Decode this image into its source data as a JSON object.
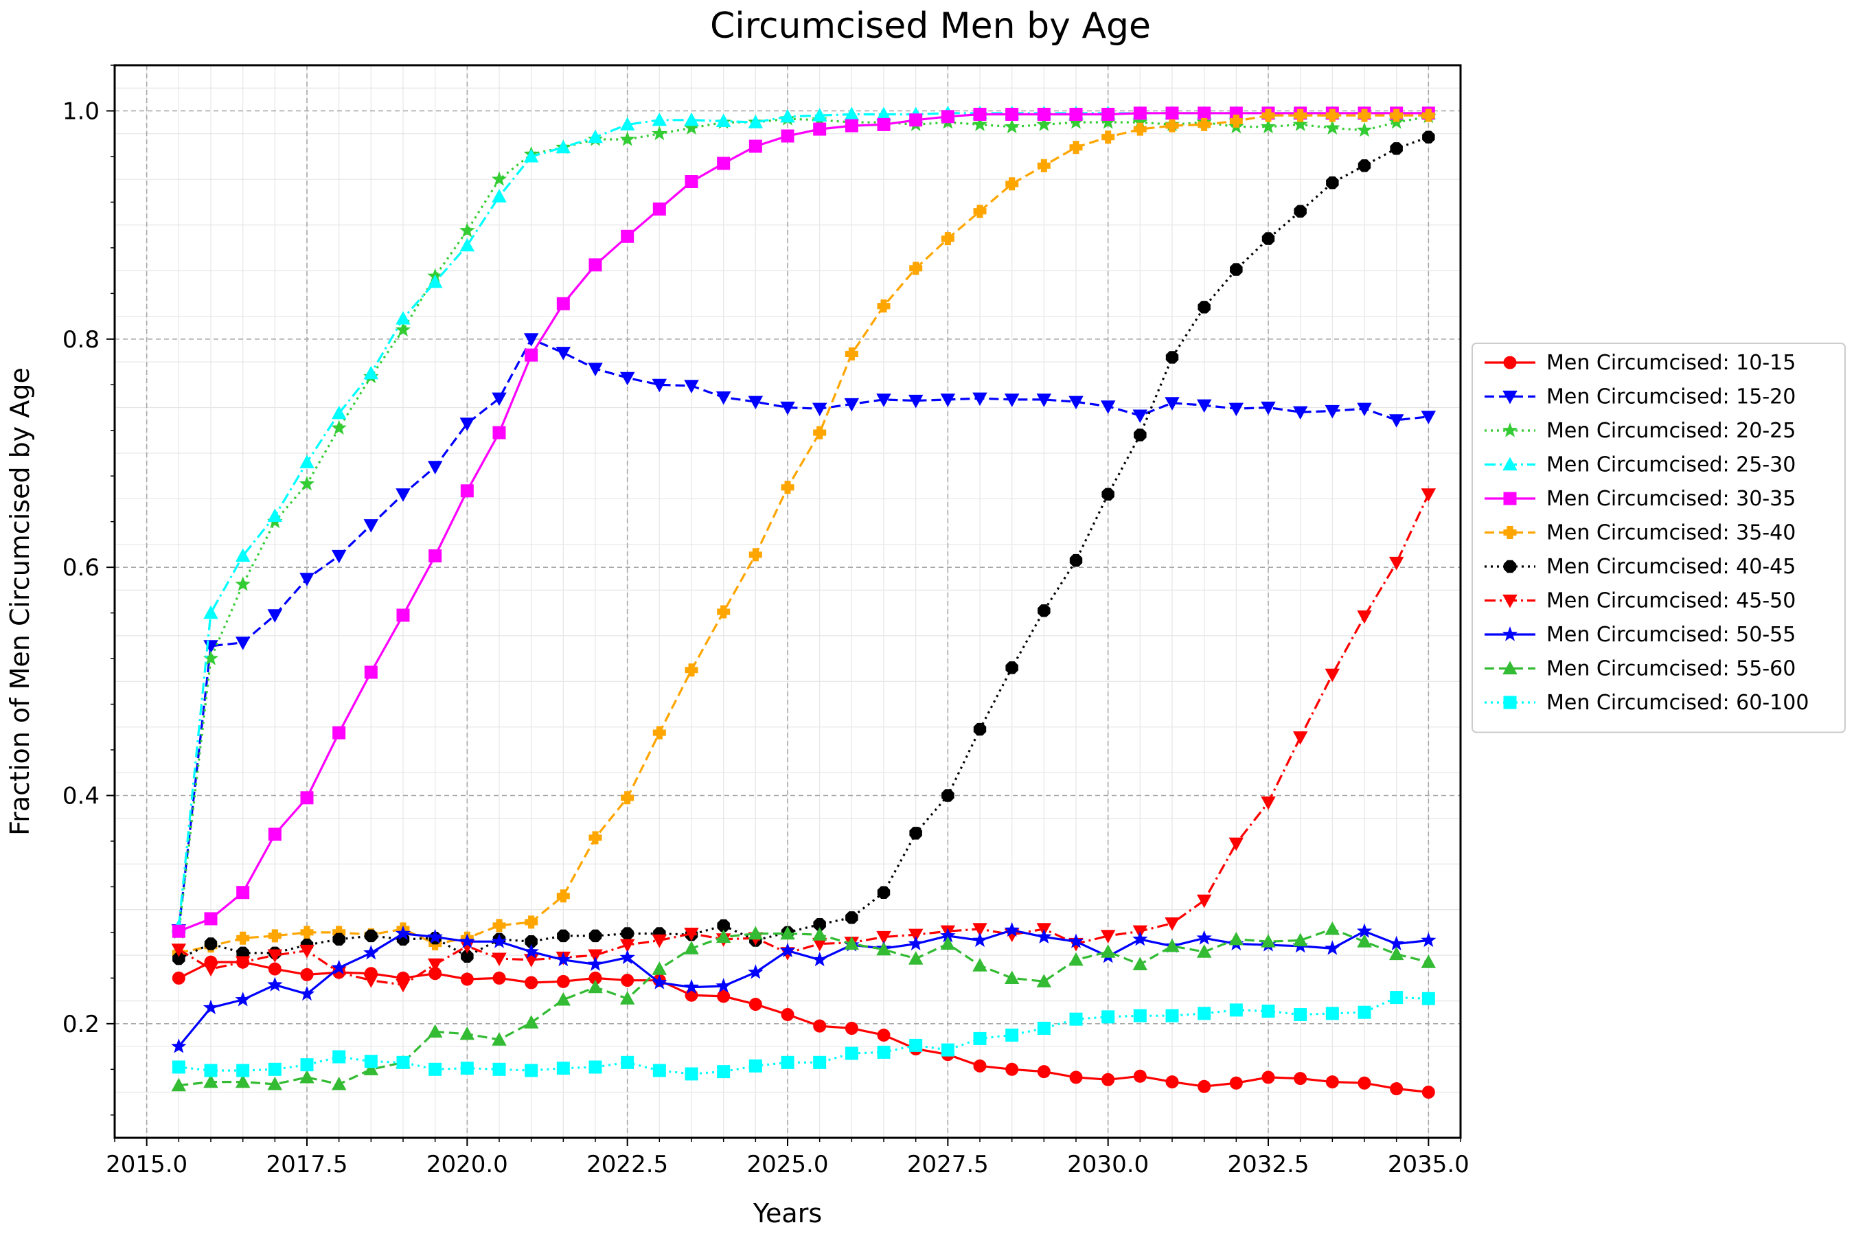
{
  "chart_data": {
    "type": "line",
    "title": "Circumcised Men by Age",
    "xlabel": "Years",
    "ylabel": "Fraction of Men Circumcised by Age",
    "xlim": [
      2014.5,
      2035.5
    ],
    "ylim": [
      0.1,
      1.04
    ],
    "x_ticks": [
      2015.0,
      2017.5,
      2020.0,
      2022.5,
      2025.0,
      2027.5,
      2030.0,
      2032.5,
      2035.0
    ],
    "x_tick_labels": [
      "2015.0",
      "2017.5",
      "2020.0",
      "2022.5",
      "2025.0",
      "2027.5",
      "2030.0",
      "2032.5",
      "2035.0"
    ],
    "y_ticks": [
      0.2,
      0.4,
      0.6,
      0.8,
      1.0
    ],
    "y_tick_labels": [
      "0.2",
      "0.4",
      "0.6",
      "0.8",
      "1.0"
    ],
    "grid": true,
    "legend_position": "outside right",
    "x": [
      2015.5,
      2016.0,
      2016.5,
      2017.0,
      2017.5,
      2018.0,
      2018.5,
      2019.0,
      2019.5,
      2020.0,
      2020.5,
      2021.0,
      2021.5,
      2022.0,
      2022.5,
      2023.0,
      2023.5,
      2024.0,
      2024.5,
      2025.0,
      2025.5,
      2026.0,
      2026.5,
      2027.0,
      2027.5,
      2028.0,
      2028.5,
      2029.0,
      2029.5,
      2030.0,
      2030.5,
      2031.0,
      2031.5,
      2032.0,
      2032.5,
      2033.0,
      2033.5,
      2034.0,
      2034.5,
      2035.0
    ],
    "series": [
      {
        "name": "Men Circumcised: 10-15",
        "color": "#ff0000",
        "marker": "circle",
        "dash": "solid",
        "values": [
          0.24,
          0.254,
          0.254,
          0.248,
          0.243,
          0.245,
          0.244,
          0.24,
          0.244,
          0.239,
          0.24,
          0.236,
          0.237,
          0.24,
          0.238,
          0.238,
          0.225,
          0.224,
          0.217,
          0.208,
          0.198,
          0.196,
          0.19,
          0.178,
          0.173,
          0.163,
          0.16,
          0.158,
          0.153,
          0.151,
          0.154,
          0.149,
          0.145,
          0.148,
          0.153,
          0.152,
          0.149,
          0.148,
          0.143,
          0.14
        ]
      },
      {
        "name": "Men Circumcised: 15-20",
        "color": "#0000ff",
        "marker": "triangle-down",
        "dash": "dashed",
        "values": [
          0.282,
          0.531,
          0.534,
          0.558,
          0.59,
          0.61,
          0.637,
          0.664,
          0.688,
          0.726,
          0.748,
          0.8,
          0.788,
          0.774,
          0.766,
          0.76,
          0.759,
          0.749,
          0.745,
          0.74,
          0.739,
          0.743,
          0.747,
          0.746,
          0.747,
          0.748,
          0.747,
          0.747,
          0.745,
          0.741,
          0.733,
          0.744,
          0.742,
          0.739,
          0.74,
          0.736,
          0.737,
          0.739,
          0.729,
          0.732
        ]
      },
      {
        "name": "Men Circumcised: 20-25",
        "color": "#33cc33",
        "marker": "star",
        "dash": "dotted",
        "values": [
          0.28,
          0.52,
          0.585,
          0.64,
          0.673,
          0.722,
          0.767,
          0.808,
          0.855,
          0.895,
          0.94,
          0.962,
          0.968,
          0.975,
          0.975,
          0.98,
          0.985,
          0.99,
          0.99,
          0.993,
          0.992,
          0.99,
          0.99,
          0.988,
          0.99,
          0.988,
          0.986,
          0.988,
          0.99,
          0.99,
          0.99,
          0.988,
          0.99,
          0.986,
          0.986,
          0.988,
          0.985,
          0.983,
          0.99,
          0.995
        ]
      },
      {
        "name": "Men Circumcised: 25-30",
        "color": "#00ffff",
        "marker": "triangle-up",
        "dash": "dashdot",
        "values": [
          0.285,
          0.56,
          0.61,
          0.645,
          0.692,
          0.735,
          0.77,
          0.818,
          0.85,
          0.882,
          0.925,
          0.96,
          0.968,
          0.977,
          0.988,
          0.992,
          0.992,
          0.991,
          0.99,
          0.995,
          0.996,
          0.997,
          0.997,
          0.997,
          0.998,
          0.998,
          0.998,
          0.998,
          0.998,
          0.998,
          0.998,
          0.998,
          0.998,
          0.998,
          0.998,
          0.998,
          0.998,
          0.998,
          0.998,
          0.998
        ]
      },
      {
        "name": "Men Circumcised: 30-35",
        "color": "#ff00ff",
        "marker": "square",
        "dash": "solid",
        "values": [
          0.281,
          0.292,
          0.315,
          0.366,
          0.398,
          0.455,
          0.508,
          0.558,
          0.61,
          0.667,
          0.718,
          0.786,
          0.831,
          0.865,
          0.89,
          0.914,
          0.938,
          0.954,
          0.969,
          0.978,
          0.984,
          0.987,
          0.988,
          0.992,
          0.995,
          0.997,
          0.997,
          0.997,
          0.997,
          0.997,
          0.998,
          0.998,
          0.998,
          0.998,
          0.998,
          0.998,
          0.998,
          0.998,
          0.998,
          0.998
        ]
      },
      {
        "name": "Men Circumcised: 35-40",
        "color": "#ffa500",
        "marker": "plus",
        "dash": "dashed",
        "values": [
          0.262,
          0.268,
          0.275,
          0.277,
          0.28,
          0.28,
          0.278,
          0.283,
          0.27,
          0.275,
          0.286,
          0.289,
          0.312,
          0.363,
          0.398,
          0.455,
          0.51,
          0.561,
          0.611,
          0.67,
          0.718,
          0.787,
          0.829,
          0.862,
          0.888,
          0.912,
          0.936,
          0.952,
          0.968,
          0.977,
          0.984,
          0.987,
          0.988,
          0.991,
          0.996,
          0.996,
          0.996,
          0.996,
          0.996,
          0.996
        ]
      },
      {
        "name": "Men Circumcised: 40-45",
        "color": "#000000",
        "marker": "octagon",
        "dash": "dotted",
        "values": [
          0.257,
          0.27,
          0.262,
          0.262,
          0.269,
          0.274,
          0.277,
          0.274,
          0.275,
          0.259,
          0.274,
          0.272,
          0.277,
          0.277,
          0.279,
          0.279,
          0.278,
          0.286,
          0.273,
          0.28,
          0.287,
          0.293,
          0.315,
          0.367,
          0.4,
          0.458,
          0.512,
          0.562,
          0.606,
          0.664,
          0.716,
          0.784,
          0.828,
          0.861,
          0.888,
          0.912,
          0.937,
          0.952,
          0.967,
          0.977
        ]
      },
      {
        "name": "Men Circumcised: 45-50",
        "color": "#ff0000",
        "marker": "triangle-down",
        "dash": "dashdot",
        "values": [
          0.265,
          0.248,
          0.254,
          0.26,
          0.264,
          0.245,
          0.238,
          0.234,
          0.252,
          0.268,
          0.257,
          0.256,
          0.258,
          0.26,
          0.269,
          0.273,
          0.279,
          0.274,
          0.275,
          0.262,
          0.27,
          0.271,
          0.276,
          0.278,
          0.281,
          0.283,
          0.278,
          0.283,
          0.27,
          0.277,
          0.281,
          0.288,
          0.308,
          0.358,
          0.394,
          0.451,
          0.506,
          0.557,
          0.604,
          0.664
        ]
      },
      {
        "name": "Men Circumcised: 50-55",
        "color": "#0000ff",
        "marker": "star",
        "dash": "solid",
        "values": [
          0.18,
          0.214,
          0.221,
          0.234,
          0.226,
          0.249,
          0.262,
          0.279,
          0.276,
          0.272,
          0.272,
          0.263,
          0.256,
          0.252,
          0.258,
          0.236,
          0.232,
          0.233,
          0.245,
          0.264,
          0.256,
          0.269,
          0.266,
          0.27,
          0.277,
          0.273,
          0.282,
          0.276,
          0.272,
          0.259,
          0.274,
          0.268,
          0.275,
          0.27,
          0.269,
          0.268,
          0.266,
          0.281,
          0.27,
          0.273
        ]
      },
      {
        "name": "Men Circumcised: 55-60",
        "color": "#33bb33",
        "marker": "triangle-up",
        "dash": "dashed",
        "values": [
          0.146,
          0.149,
          0.149,
          0.147,
          0.153,
          0.147,
          0.16,
          0.166,
          0.193,
          0.191,
          0.186,
          0.201,
          0.221,
          0.232,
          0.222,
          0.248,
          0.266,
          0.276,
          0.279,
          0.279,
          0.278,
          0.27,
          0.265,
          0.257,
          0.27,
          0.251,
          0.24,
          0.237,
          0.256,
          0.263,
          0.252,
          0.268,
          0.263,
          0.274,
          0.272,
          0.273,
          0.283,
          0.272,
          0.261,
          0.254
        ]
      },
      {
        "name": "Men Circumcised: 60-100",
        "color": "#00ffff",
        "marker": "square",
        "dash": "dotted",
        "values": [
          0.162,
          0.159,
          0.159,
          0.16,
          0.164,
          0.171,
          0.167,
          0.166,
          0.16,
          0.161,
          0.16,
          0.159,
          0.161,
          0.162,
          0.166,
          0.159,
          0.156,
          0.158,
          0.163,
          0.166,
          0.166,
          0.174,
          0.175,
          0.181,
          0.177,
          0.187,
          0.19,
          0.196,
          0.204,
          0.206,
          0.207,
          0.207,
          0.209,
          0.212,
          0.211,
          0.208,
          0.209,
          0.21,
          0.223,
          0.222
        ]
      }
    ]
  }
}
